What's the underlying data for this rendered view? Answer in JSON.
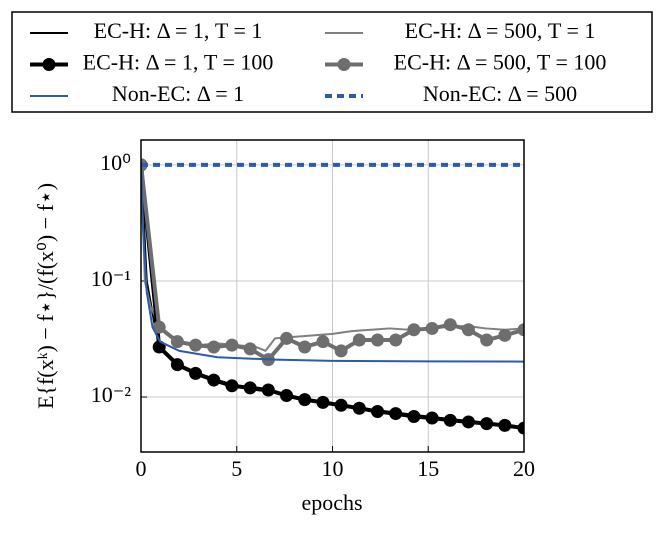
{
  "chart_data": {
    "type": "line",
    "log_y": true,
    "grid": true,
    "xlabel": "epochs",
    "ylabel": "E{f(xᵏ) − f⋆}/(f(x⁰) − f⋆)",
    "xlim": [
      0,
      20
    ],
    "xticks": [
      0,
      5,
      10,
      15,
      20
    ],
    "ylim": [
      0.00336,
      1.64
    ],
    "yticks": [
      {
        "value": 1,
        "label": "10⁰"
      },
      {
        "value": 0.1,
        "label": "10⁻¹"
      },
      {
        "value": 0.01,
        "label": "10⁻²"
      }
    ],
    "series": [
      {
        "name": "EC-H: Δ = 1, T = 1",
        "color": "#000000",
        "width": 2,
        "marker": false,
        "dash": false,
        "x": [
          0,
          0.3,
          0.8,
          1,
          2,
          3,
          4,
          5,
          6,
          7,
          8,
          9,
          10,
          12,
          14,
          16,
          18,
          20
        ],
        "values": [
          1,
          0.1,
          0.035,
          0.027,
          0.019,
          0.016,
          0.014,
          0.0125,
          0.0115,
          0.011,
          0.01,
          0.0092,
          0.0087,
          0.0078,
          0.0071,
          0.0065,
          0.006,
          0.0054
        ]
      },
      {
        "name": "EC-H: Δ = 500, T = 1",
        "color": "#808080",
        "width": 2,
        "marker": false,
        "dash": false,
        "x": [
          0,
          0.2,
          0.5,
          1,
          2,
          3,
          4,
          5,
          6,
          6.5,
          7,
          8,
          9,
          10,
          11,
          12,
          13,
          14,
          15,
          16,
          17,
          18,
          19,
          20
        ],
        "values": [
          1,
          0.1,
          0.06,
          0.04,
          0.03,
          0.028,
          0.029,
          0.028,
          0.027,
          0.025,
          0.032,
          0.033,
          0.034,
          0.035,
          0.037,
          0.038,
          0.039,
          0.038,
          0.039,
          0.04,
          0.041,
          0.039,
          0.038,
          0.039
        ]
      },
      {
        "name": "EC-H: Δ = 1, T = 100",
        "color": "#000000",
        "width": 4,
        "marker": true,
        "dash": false,
        "x": [
          0,
          0.95,
          1.9,
          2.85,
          3.8,
          4.75,
          5.7,
          6.65,
          7.6,
          8.55,
          9.5,
          10.45,
          11.4,
          12.35,
          13.3,
          14.25,
          15.2,
          16.15,
          17.1,
          18.05,
          19,
          20
        ],
        "values": [
          1,
          0.027,
          0.019,
          0.016,
          0.014,
          0.0125,
          0.012,
          0.0115,
          0.0103,
          0.0095,
          0.009,
          0.0085,
          0.008,
          0.0075,
          0.0072,
          0.0068,
          0.0066,
          0.0063,
          0.0061,
          0.0059,
          0.0057,
          0.0054
        ]
      },
      {
        "name": "EC-H: Δ = 500, T = 100",
        "color": "#6e6e6e",
        "width": 4,
        "marker": true,
        "dash": false,
        "x": [
          0,
          0.95,
          1.9,
          2.85,
          3.8,
          4.75,
          5.7,
          6.65,
          7.6,
          8.55,
          9.5,
          10.45,
          11.4,
          12.35,
          13.3,
          14.25,
          15.2,
          16.15,
          17.1,
          18.05,
          19,
          20
        ],
        "values": [
          1,
          0.04,
          0.03,
          0.028,
          0.027,
          0.028,
          0.026,
          0.021,
          0.032,
          0.027,
          0.03,
          0.025,
          0.031,
          0.031,
          0.031,
          0.038,
          0.039,
          0.042,
          0.038,
          0.031,
          0.034,
          0.038
        ]
      },
      {
        "name": "Non-EC: Δ = 1",
        "color": "#2a5caa",
        "width": 2,
        "marker": false,
        "dash": false,
        "x": [
          0,
          0.1,
          0.3,
          0.6,
          1,
          2,
          4,
          7,
          10,
          15,
          20
        ],
        "values": [
          1,
          0.3,
          0.08,
          0.04,
          0.03,
          0.025,
          0.022,
          0.021,
          0.0205,
          0.0203,
          0.0202
        ]
      },
      {
        "name": "Non-EC: Δ = 500",
        "color": "#2a5caa",
        "width": 4,
        "marker": false,
        "dash": true,
        "x": [
          0,
          20
        ],
        "values": [
          1,
          1
        ]
      }
    ]
  }
}
